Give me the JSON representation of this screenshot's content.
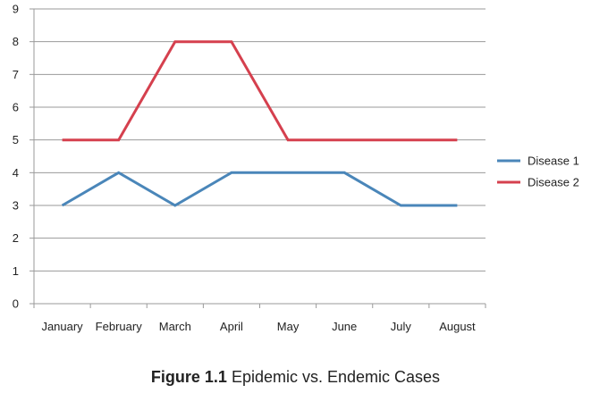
{
  "chart_data": {
    "type": "line",
    "categories": [
      "January",
      "February",
      "March",
      "April",
      "May",
      "June",
      "July",
      "August"
    ],
    "series": [
      {
        "name": "Disease 1",
        "color": "#4a86b9",
        "values": [
          3,
          4,
          3,
          4,
          4,
          4,
          3,
          3
        ]
      },
      {
        "name": "Disease 2",
        "color": "#d5404e",
        "values": [
          5,
          5,
          8,
          8,
          5,
          5,
          5,
          5
        ]
      }
    ],
    "ylim": [
      0,
      9
    ],
    "yticks": [
      0,
      1,
      2,
      3,
      4,
      5,
      6,
      7,
      8,
      9
    ],
    "grid": true,
    "legend": "right"
  },
  "caption": {
    "figure_number": "Figure 1.1",
    "text": "Epidemic vs. Endemic Cases"
  }
}
